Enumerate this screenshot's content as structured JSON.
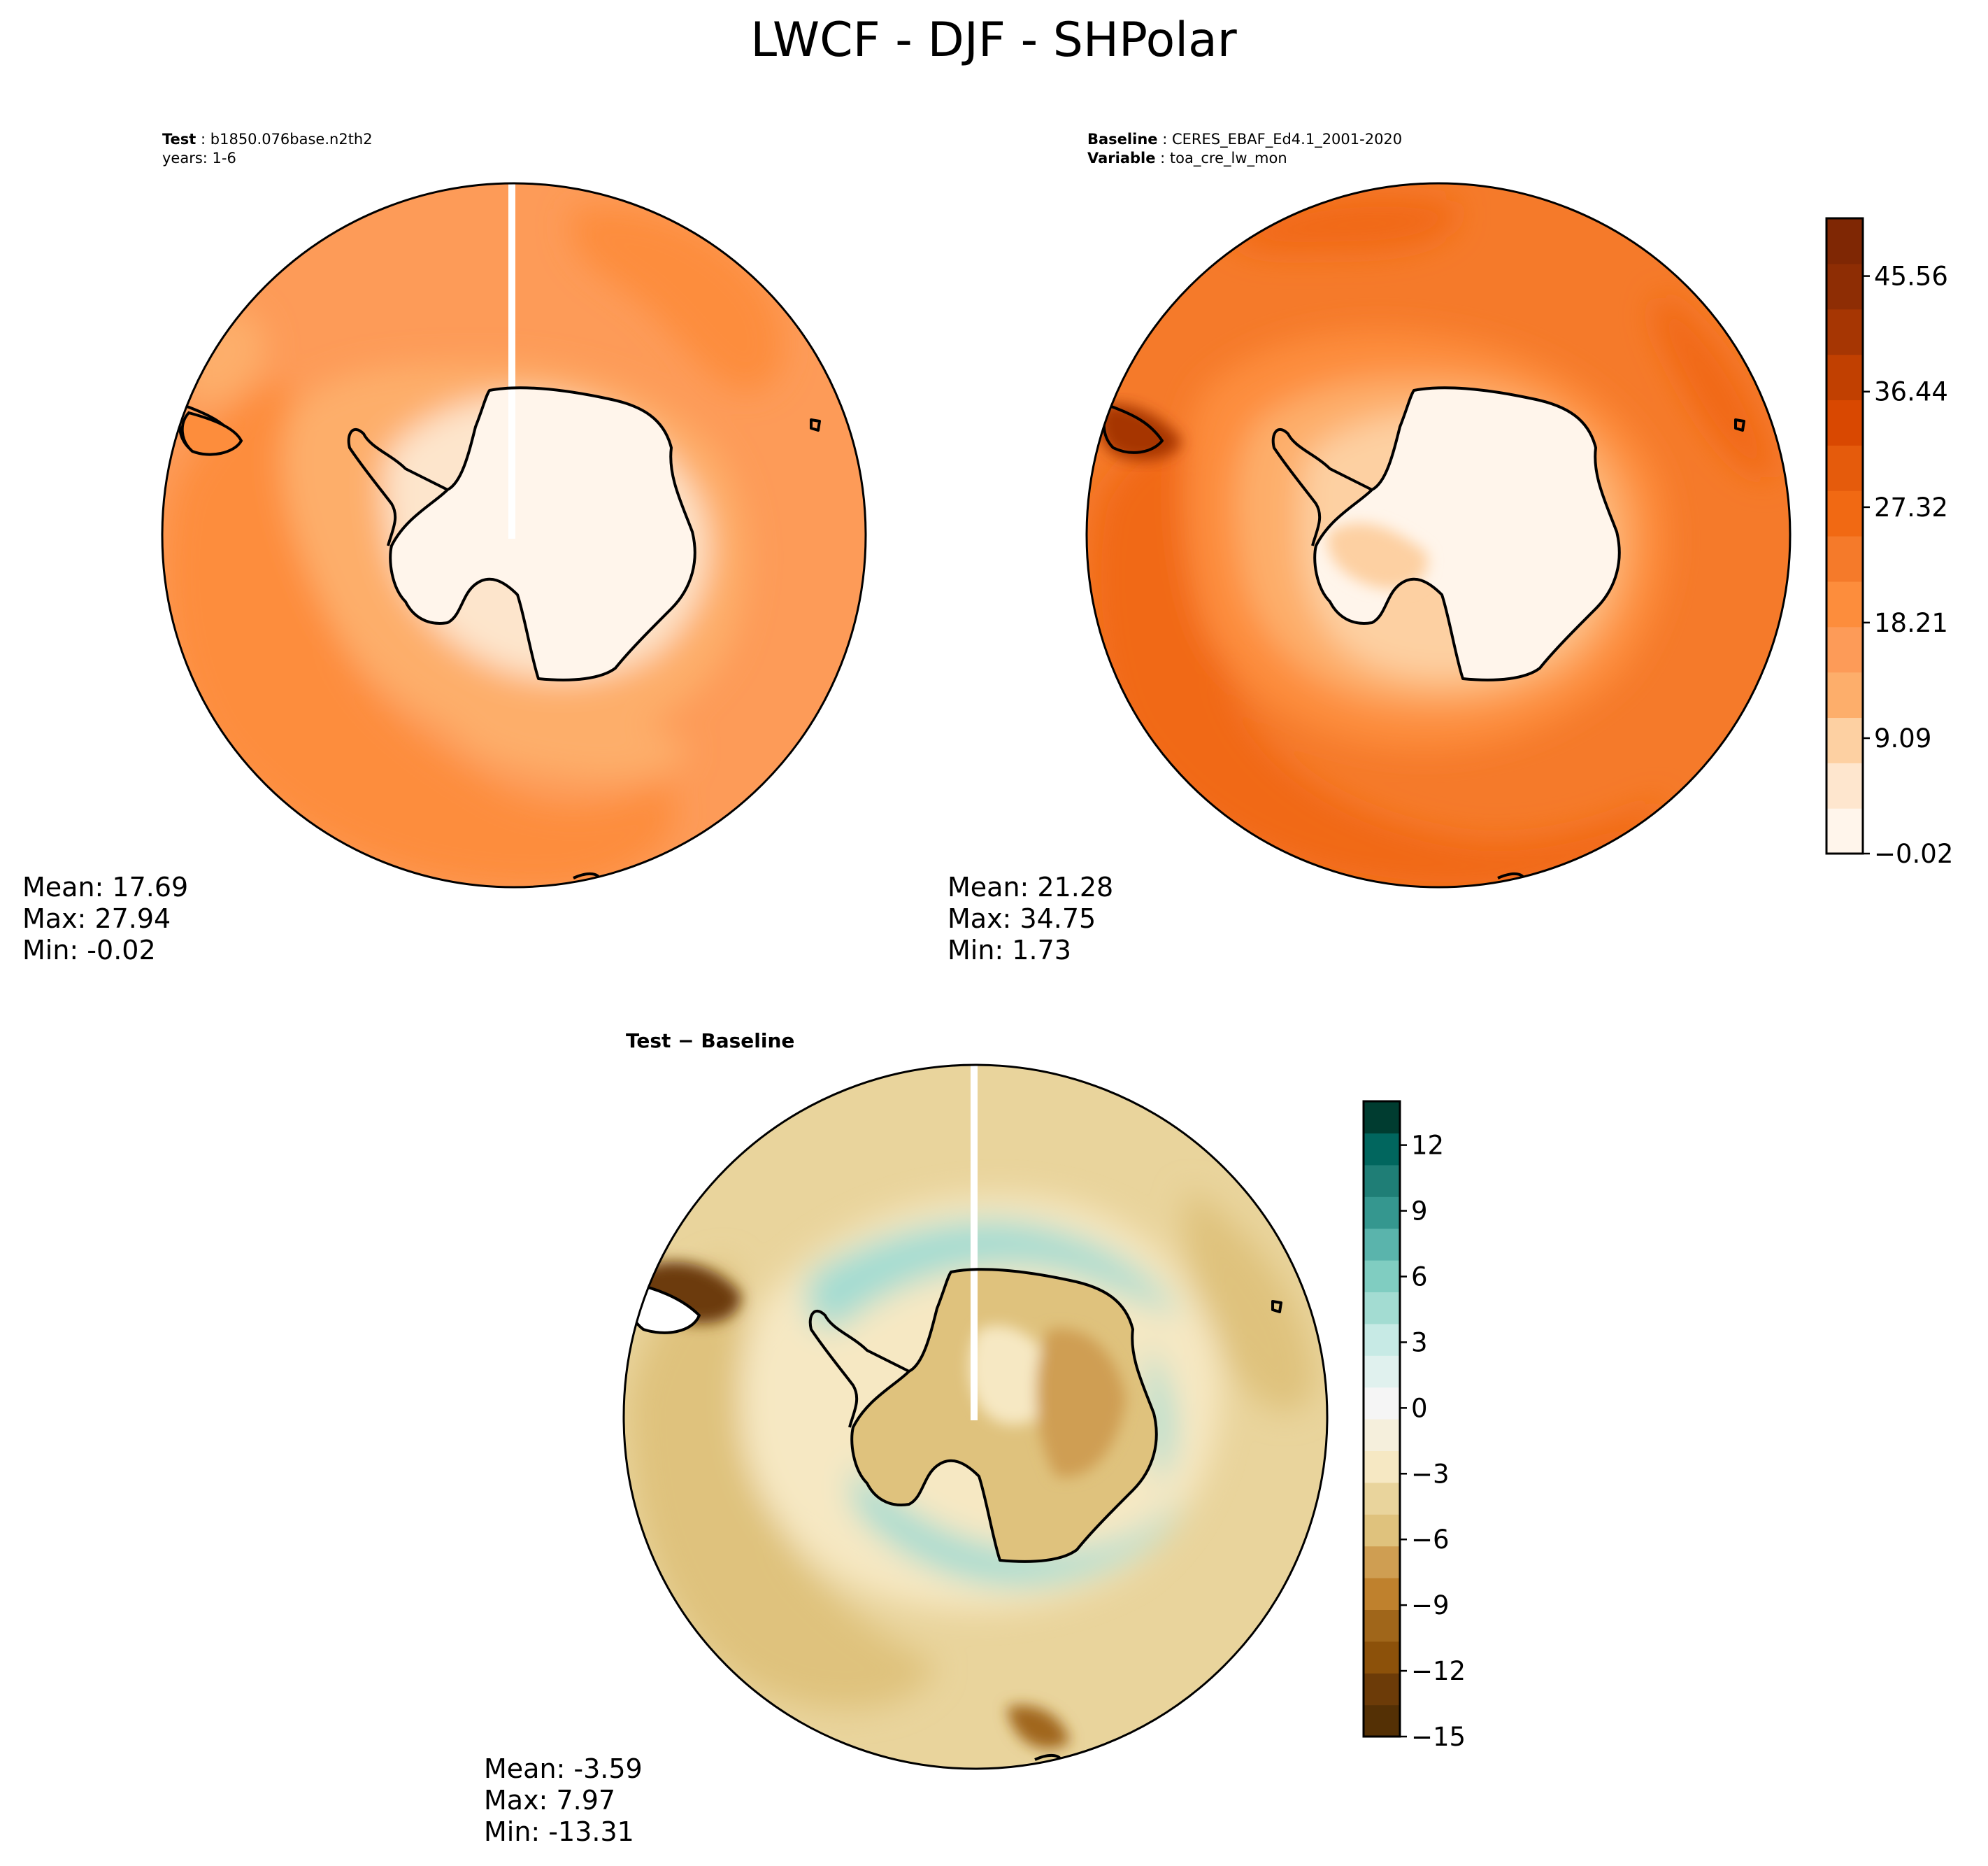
{
  "figure": {
    "title": "LWCF - DJF - SHPolar"
  },
  "panels": [
    {
      "id": "test",
      "header_lines": [
        {
          "label": "Test",
          "value": "b1850.076base.n2th2"
        },
        {
          "label": "",
          "value": "years: 1-6"
        }
      ],
      "stats": {
        "mean": "Mean: 17.69",
        "max": "Max: 27.94",
        "min": "Min: -0.02"
      }
    },
    {
      "id": "baseline",
      "header_lines": [
        {
          "label": "Baseline",
          "value": "CERES_EBAF_Ed4.1_2001-2020"
        },
        {
          "label": "Variable",
          "value": "toa_cre_lw_mon"
        }
      ],
      "stats": {
        "mean": "Mean: 21.28",
        "max": "Max: 34.75",
        "min": "Min:  1.73"
      }
    },
    {
      "id": "diff",
      "header_lines": [
        {
          "label": "Test",
          "value": "Baseline"
        }
      ],
      "stats": {
        "mean": "Mean: -3.59",
        "max": "Max:  7.97",
        "min": "Min: -13.31"
      }
    }
  ],
  "colorbars": {
    "main": {
      "min": -0.02,
      "max": 50.12,
      "tick_labels": [
        "−0.02",
        "9.09",
        "18.21",
        "27.32",
        "36.44",
        "45.56"
      ],
      "tick_values": [
        -0.02,
        9.09,
        18.21,
        27.32,
        36.44,
        45.56
      ],
      "colors": [
        "#fff5eb",
        "#fee6ce",
        "#fdd0a2",
        "#fdae6b",
        "#fd9b58",
        "#fd8d3c",
        "#f57a2a",
        "#f16913",
        "#e55b0c",
        "#d94801",
        "#c14001",
        "#a63603",
        "#8e2d04",
        "#7f2704"
      ]
    },
    "diff": {
      "min": -15,
      "max": 14,
      "tick_labels": [
        "−15",
        "−12",
        "−9",
        "−6",
        "−3",
        "0",
        "3",
        "6",
        "9",
        "12"
      ],
      "tick_values": [
        -15,
        -12,
        -9,
        -6,
        -3,
        0,
        3,
        6,
        9,
        12
      ],
      "colors": [
        "#543005",
        "#6c3b08",
        "#8c510a",
        "#a0661a",
        "#bf812d",
        "#cf9e52",
        "#dfc27d",
        "#e9d49c",
        "#f6e8c3",
        "#f5efdc",
        "#f5f5f5",
        "#e0f1ee",
        "#c7eae5",
        "#a3dcd2",
        "#80cdc1",
        "#5ab4ac",
        "#35978f",
        "#1f7e76",
        "#01665e",
        "#003c30"
      ]
    }
  },
  "field_colors": {
    "test": {
      "ocean": "#fd9b58",
      "ocean_dark": "#fd8d3c",
      "mid": "#fdae6b",
      "land": "#fff5eb",
      "coast_band": "#fde5cc"
    },
    "baseline": {
      "ocean": "#f57a2a",
      "ocean_dark": "#f16913",
      "mid": "#fd8d3c",
      "light": "#fdc998",
      "land": "#fff5eb",
      "hotspot": "#a63603"
    },
    "diff": {
      "ocean": "#e9d49c",
      "ocean_dark": "#cf9e52",
      "light": "#f6e8c3",
      "teal": "#a3dcd2",
      "land": "#dfc27d",
      "hotspot": "#6c3b08"
    }
  }
}
